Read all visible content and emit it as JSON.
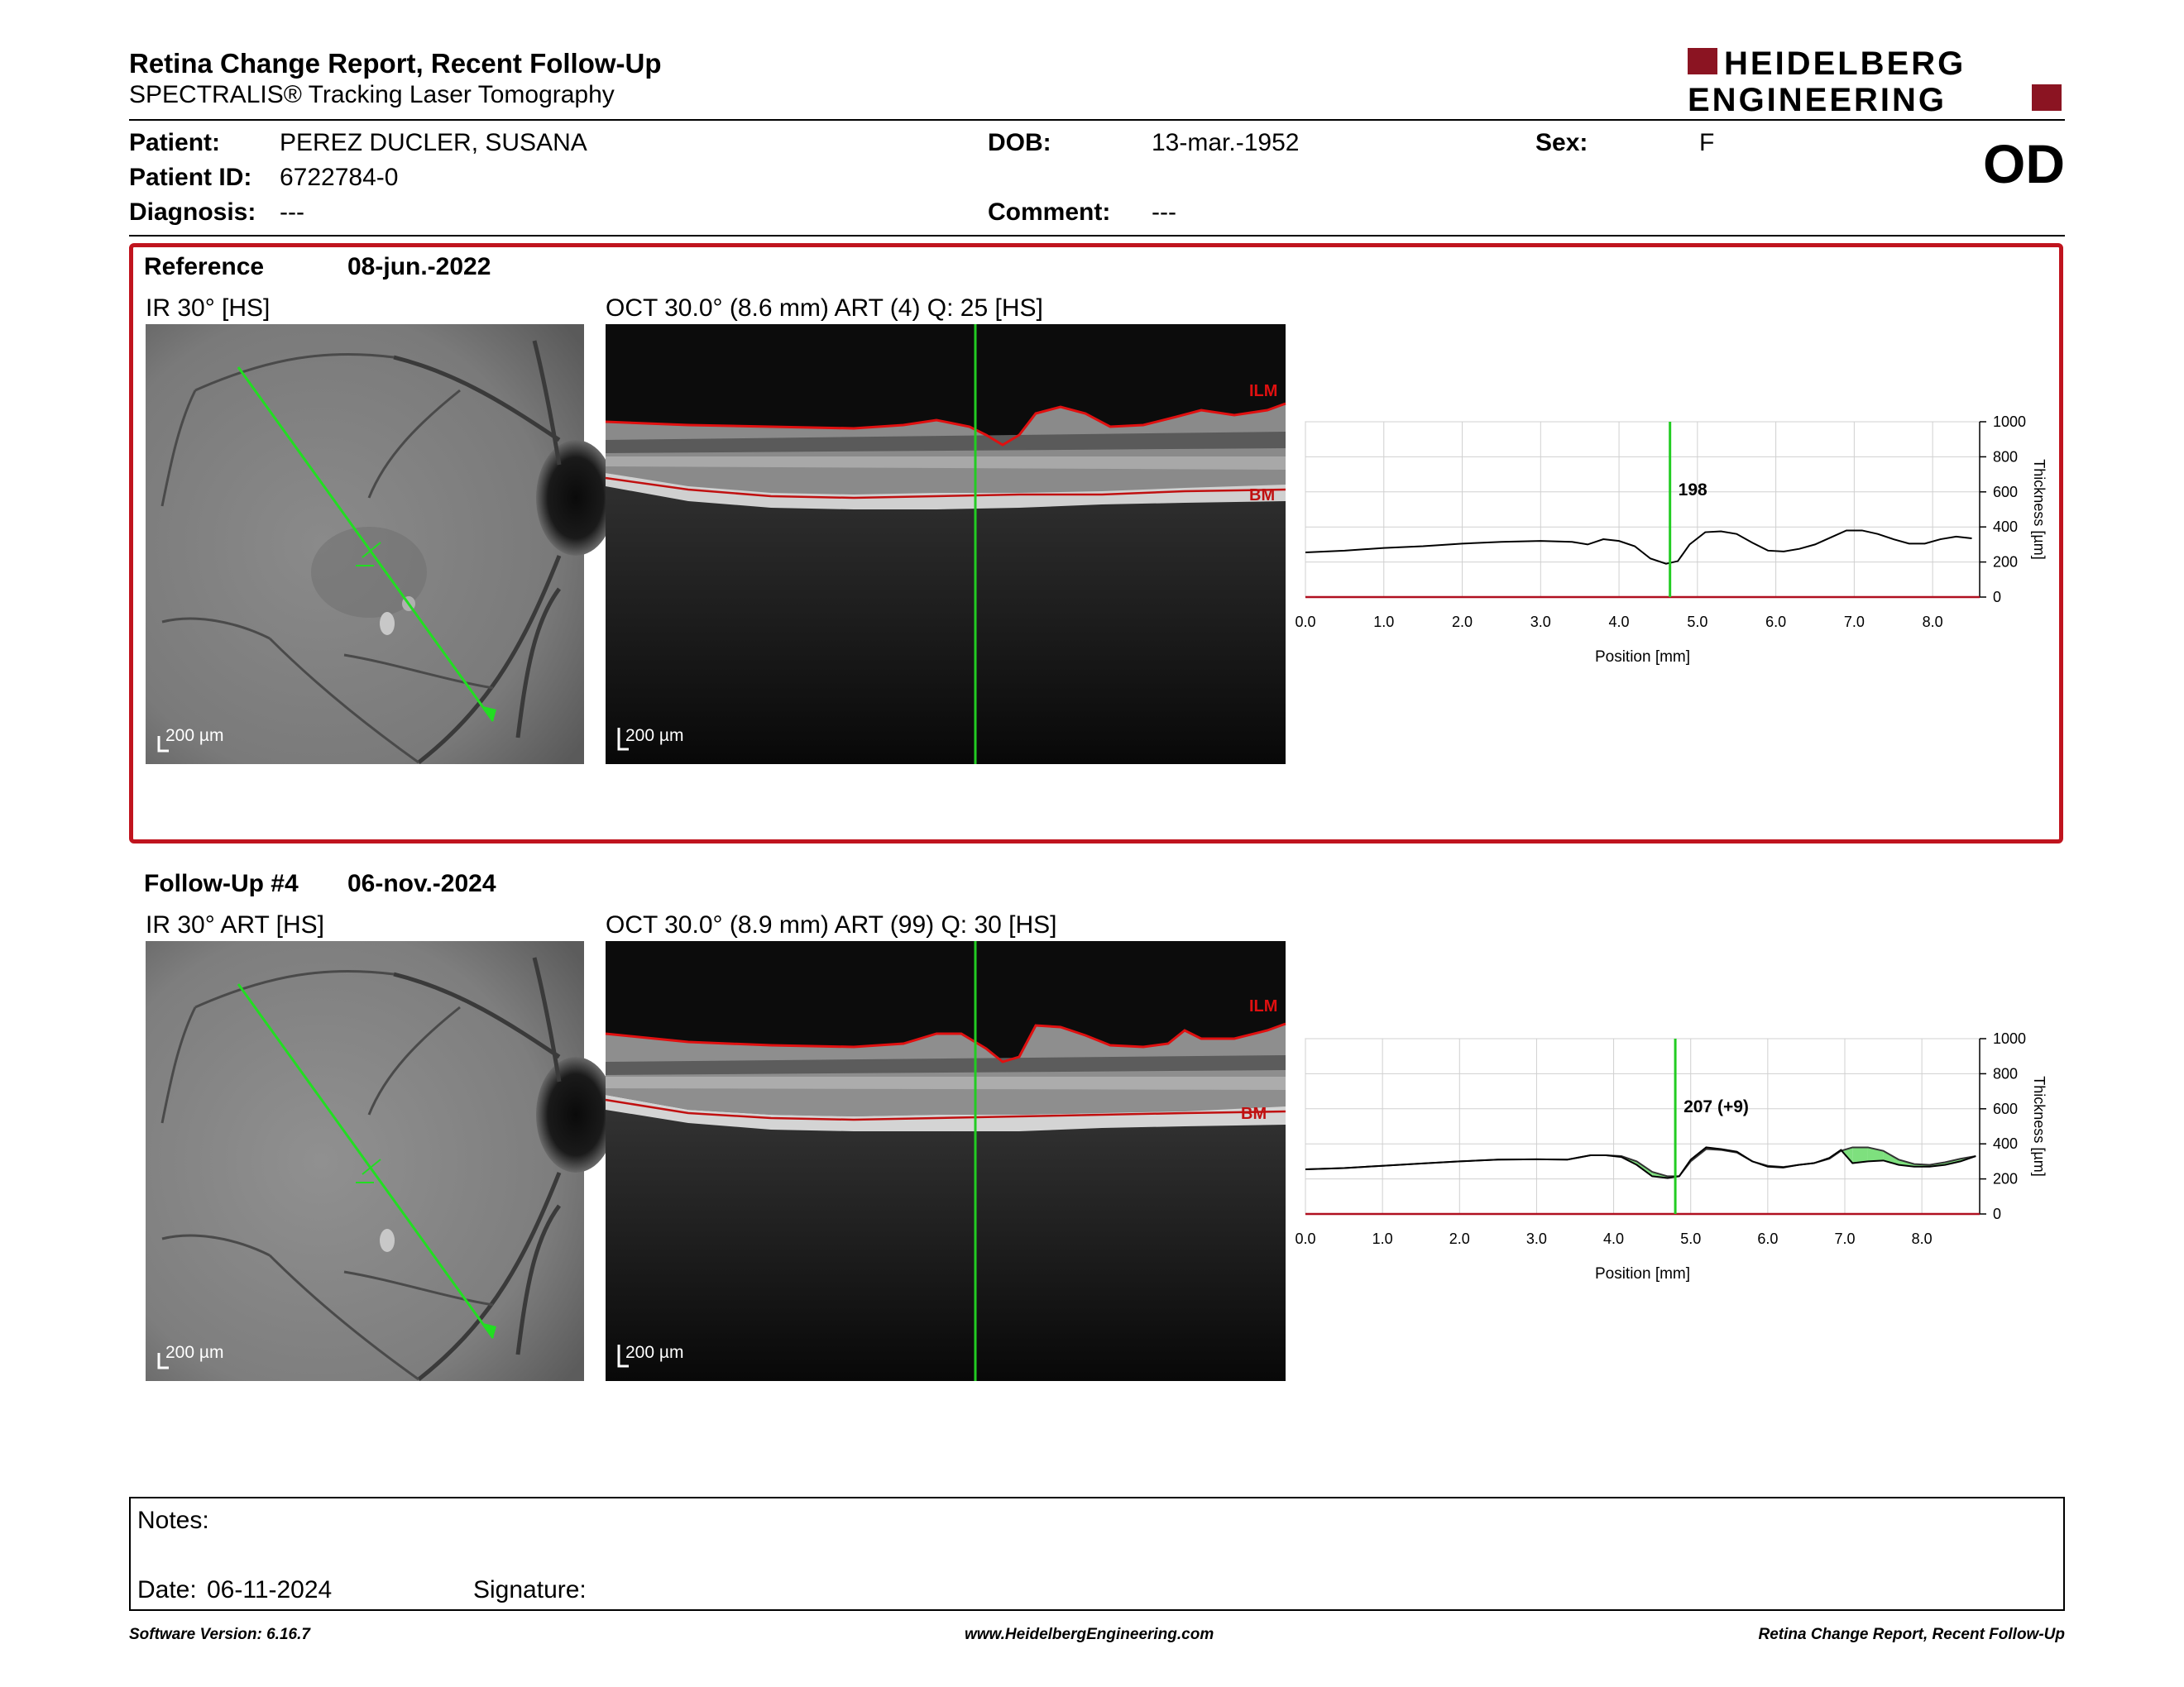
{
  "header": {
    "title": "Retina Change Report, Recent Follow-Up",
    "subtitle": "SPECTRALIS® Tracking Laser Tomography",
    "logo_line1": "HEIDELBERG",
    "logo_line2": "ENGINEERING"
  },
  "patient": {
    "name_label": "Patient:",
    "name": "PEREZ DUCLER, SUSANA",
    "id_label": "Patient ID:",
    "id": "6722784-0",
    "diagnosis_label": "Diagnosis:",
    "diagnosis": "---",
    "dob_label": "DOB:",
    "dob": "13-mar.-1952",
    "comment_label": "Comment:",
    "comment": "---",
    "sex_label": "Sex:",
    "sex": "F",
    "eye": "OD"
  },
  "reference": {
    "label": "Reference",
    "date": "08-jun.-2022",
    "ir_label": "IR 30° [HS]",
    "oct_label": "OCT 30.0° (8.6 mm) ART (4) Q: 25 [HS]",
    "scale": "200 µm",
    "ilm": "ILM",
    "bm": "BM"
  },
  "followup": {
    "label": "Follow-Up #4",
    "date": "06-nov.-2024",
    "ir_label": "IR 30° ART [HS]",
    "oct_label": "OCT 30.0° (8.9 mm) ART (99) Q: 30 [HS]",
    "scale": "200 µm",
    "ilm": "ILM",
    "bm": "BM"
  },
  "chart_data": [
    {
      "type": "line",
      "xlabel": "Position [mm]",
      "ylabel": "Thickness [µm]",
      "xlim": [
        0,
        8.6
      ],
      "ylim": [
        0,
        1000
      ],
      "xticks": [
        "0.0",
        "1.0",
        "2.0",
        "3.0",
        "4.0",
        "5.0",
        "6.0",
        "7.0",
        "8.0"
      ],
      "yticks": [
        "0",
        "200",
        "400",
        "600",
        "800",
        "1000"
      ],
      "cursor_x": 4.65,
      "cursor_label": "198",
      "grid": true,
      "series": [
        {
          "x": [
            0.0,
            0.5,
            1.0,
            1.5,
            2.0,
            2.5,
            3.0,
            3.4,
            3.6,
            3.8,
            4.0,
            4.2,
            4.4,
            4.6,
            4.75,
            4.9,
            5.1,
            5.3,
            5.5,
            5.7,
            5.9,
            6.1,
            6.3,
            6.5,
            6.7,
            6.9,
            7.1,
            7.3,
            7.5,
            7.7,
            7.9,
            8.1,
            8.3,
            8.5
          ],
          "values": [
            255,
            265,
            280,
            290,
            305,
            315,
            320,
            315,
            300,
            330,
            320,
            290,
            220,
            190,
            205,
            300,
            370,
            375,
            360,
            310,
            265,
            260,
            275,
            300,
            340,
            380,
            380,
            360,
            330,
            305,
            305,
            330,
            345,
            335
          ]
        }
      ]
    },
    {
      "type": "line",
      "xlabel": "Position [mm]",
      "ylabel": "Thickness [µm]",
      "xlim": [
        0,
        8.8
      ],
      "ylim": [
        0,
        1000
      ],
      "xticks": [
        "0.0",
        "1.0",
        "2.0",
        "3.0",
        "4.0",
        "5.0",
        "6.0",
        "7.0",
        "8.0"
      ],
      "yticks": [
        "0",
        "200",
        "400",
        "600",
        "800",
        "1000"
      ],
      "cursor_x": 4.8,
      "cursor_label": "207 (+9)",
      "grid": true,
      "series": [
        {
          "x": [
            0.0,
            0.5,
            1.0,
            1.5,
            2.0,
            2.5,
            3.0,
            3.4,
            3.7,
            3.9,
            4.1,
            4.3,
            4.5,
            4.7,
            4.85,
            5.0,
            5.2,
            5.4,
            5.6,
            5.8,
            6.0,
            6.2,
            6.4,
            6.6,
            6.8,
            6.95,
            7.1,
            7.3,
            7.5,
            7.7,
            7.9,
            8.1,
            8.3,
            8.5,
            8.7
          ],
          "values": [
            255,
            262,
            275,
            288,
            300,
            310,
            312,
            310,
            335,
            335,
            325,
            280,
            215,
            205,
            215,
            310,
            380,
            370,
            355,
            300,
            270,
            265,
            280,
            290,
            320,
            365,
            290,
            300,
            305,
            280,
            270,
            270,
            280,
            300,
            330
          ]
        },
        {
          "x": [
            0.0,
            0.5,
            1.0,
            1.5,
            2.0,
            2.5,
            3.0,
            3.4,
            3.7,
            3.9,
            4.1,
            4.3,
            4.5,
            4.7,
            4.85,
            5.0,
            5.2,
            5.4,
            5.6,
            5.8,
            6.0,
            6.2,
            6.4,
            6.6,
            6.8,
            6.95,
            7.1,
            7.3,
            7.5,
            7.7,
            7.9,
            8.1,
            8.3,
            8.5,
            8.7
          ],
          "values": [
            255,
            262,
            275,
            288,
            300,
            310,
            312,
            310,
            335,
            335,
            330,
            300,
            240,
            215,
            215,
            300,
            370,
            365,
            350,
            300,
            275,
            268,
            280,
            290,
            315,
            360,
            380,
            380,
            360,
            310,
            285,
            280,
            295,
            315,
            330
          ]
        }
      ]
    }
  ],
  "notes": {
    "notes_label": "Notes:",
    "date_label": "Date:",
    "date": "06-11-2024",
    "signature_label": "Signature:"
  },
  "footer": {
    "version": "Software Version: 6.16.7",
    "url": "www.HeidelbergEngineering.com",
    "report": "Retina Change Report, Recent Follow-Up"
  },
  "colors": {
    "accent": "#c0141e",
    "cursor": "#22cc22",
    "increase": "#7ee07e",
    "decrease": "#e07070"
  }
}
